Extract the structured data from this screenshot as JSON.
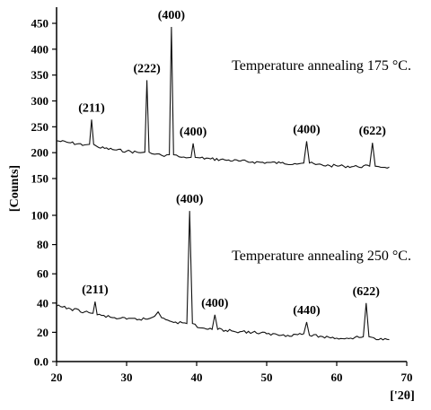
{
  "chart_data": {
    "type": "line",
    "xlabel": "['2θ]",
    "ylabel": "[Counts]",
    "xlim": [
      20,
      70
    ],
    "x_ticks": [
      "20",
      "30",
      "40",
      "50",
      "60",
      "70"
    ],
    "panels": [
      {
        "annotation": "Temperature annealing 175 °C.",
        "ylim": [
          150,
          460
        ],
        "y_ticks": [
          "150",
          "200",
          "250",
          "300",
          "350",
          "400",
          "450"
        ],
        "series": [
          {
            "x": [
              20,
              22,
              24,
              24.7,
              25.0,
              25.3,
              26,
              28,
              30,
              32,
              32.6,
              32.9,
              33.2,
              34,
              35,
              36.1,
              36.4,
              36.7,
              37.5,
              38.5,
              39.2,
              39.5,
              39.8,
              40.5,
              42,
              44,
              46,
              48,
              50,
              52,
              54,
              55.3,
              55.7,
              56.1,
              57,
              59,
              61,
              63,
              64.7,
              65.1,
              65.5,
              66,
              67.5
            ],
            "y": [
              223,
              219,
              215,
              216,
              264,
              216,
              210,
              206,
              203,
              200,
              201,
              340,
              201,
              197,
              195,
              196,
              443,
              196,
              192,
              190,
              191,
              218,
              191,
              190,
              188,
              186,
              184,
              182,
              181,
              180,
              179,
              180,
              222,
              180,
              177,
              175,
              174,
              173,
              174,
              219,
              174,
              173,
              172
            ]
          }
        ],
        "peaks": [
          {
            "label": "(211)",
            "x": 25.0,
            "y": 264
          },
          {
            "label": "(222)",
            "x": 32.9,
            "y": 340
          },
          {
            "label": "(400)",
            "x": 36.4,
            "y": 443
          },
          {
            "label": "(400)",
            "x": 39.5,
            "y": 218
          },
          {
            "label": "(400)",
            "x": 55.7,
            "y": 222
          },
          {
            "label": "(622)",
            "x": 65.1,
            "y": 219
          }
        ]
      },
      {
        "annotation": "Temperature annealing 250 °C.",
        "ylim": [
          0,
          110
        ],
        "y_ticks": [
          "0.0",
          "20",
          "40",
          "60",
          "80",
          "100"
        ],
        "series": [
          {
            "x": [
              20,
              22,
              24,
              25.2,
              25.5,
              25.8,
              28,
              30,
              33,
              34,
              34.5,
              35,
              37,
              38.6,
              39.0,
              39.4,
              40.5,
              42.2,
              42.6,
              43.0,
              45,
              48,
              50,
              53,
              55.3,
              55.7,
              56.1,
              58,
              60,
              62,
              63.8,
              64.2,
              64.6,
              66,
              67.5
            ],
            "y": [
              38,
              36,
              34,
              33,
              41,
              32,
              30,
              29,
              29,
              31,
              34,
              30,
              27,
              26,
              103,
              26,
              23,
              22,
              32,
              22,
              21,
              20,
              19,
              18,
              19,
              27,
              18,
              17,
              16,
              16,
              17,
              40,
              17,
              15,
              15
            ]
          }
        ],
        "peaks": [
          {
            "label": "(211)",
            "x": 25.5,
            "y": 41
          },
          {
            "label": "(400)",
            "x": 39.0,
            "y": 103
          },
          {
            "label": "(400)",
            "x": 42.6,
            "y": 32
          },
          {
            "label": "(440)",
            "x": 55.7,
            "y": 27
          },
          {
            "label": "(622)",
            "x": 64.2,
            "y": 40
          }
        ]
      }
    ]
  }
}
